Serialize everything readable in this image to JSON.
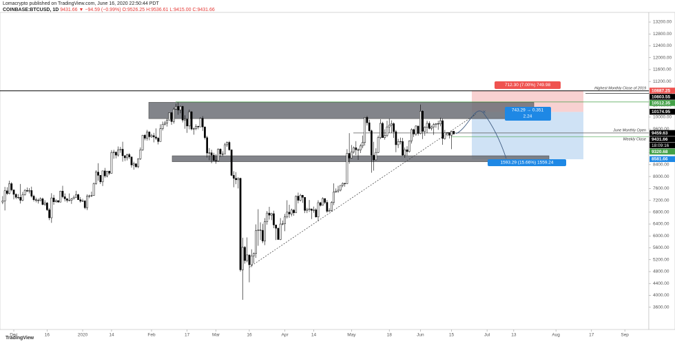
{
  "header": {
    "author": "Lomacrypto published on TradingView.com, June 16, 2020 22:50:44 PDT",
    "symbol": "COINBASE:BTCUSD, 1D",
    "quote": "9431.66 ▼ −94.59 (−0.99%)",
    "ohlc": "O:9526.25 H:9536.61 L:9415.00 C:9431.66"
  },
  "footer": {
    "brand": "TradingView"
  },
  "chart_data": {
    "type": "candlestick",
    "up_color": "#ffffff",
    "down_color": "#000000",
    "grid": false,
    "xlim": [
      -1.2,
      290.8
    ],
    "xticks": [
      {
        "value": 5,
        "label": "Dec"
      },
      {
        "value": 20,
        "label": "16"
      },
      {
        "value": 36,
        "label": "2020"
      },
      {
        "value": 49,
        "label": "14"
      },
      {
        "value": 67,
        "label": "Feb"
      },
      {
        "value": 83,
        "label": "17"
      },
      {
        "value": 96,
        "label": "Mar"
      },
      {
        "value": 111,
        "label": "16"
      },
      {
        "value": 127,
        "label": "Apr"
      },
      {
        "value": 140,
        "label": "14"
      },
      {
        "value": 157,
        "label": "May"
      },
      {
        "value": 174,
        "label": "18"
      },
      {
        "value": 188,
        "label": "Jun"
      },
      {
        "value": 202,
        "label": "15"
      },
      {
        "value": 218,
        "label": "Jul"
      },
      {
        "value": 230,
        "label": "13"
      },
      {
        "value": 249,
        "label": "Aug"
      },
      {
        "value": 265,
        "label": "17"
      },
      {
        "value": 280,
        "label": "Sep"
      }
    ],
    "ylim": [
      2850,
      13525
    ],
    "yticks": [
      {
        "value": 3600,
        "label": "3600.00"
      },
      {
        "value": 4000,
        "label": "4000.00"
      },
      {
        "value": 4400,
        "label": "4400.00"
      },
      {
        "value": 4800,
        "label": "4800.00"
      },
      {
        "value": 5200,
        "label": "5200.00"
      },
      {
        "value": 5600,
        "label": "5600.00"
      },
      {
        "value": 6000,
        "label": "6000.00"
      },
      {
        "value": 6400,
        "label": "6400.00"
      },
      {
        "value": 6800,
        "label": "6800.00"
      },
      {
        "value": 7200,
        "label": "7200.00"
      },
      {
        "value": 7600,
        "label": "7600.00"
      },
      {
        "value": 8000,
        "label": "8000.00"
      },
      {
        "value": 8400,
        "label": "8400.00"
      },
      {
        "value": 8800,
        "label": "8800.00"
      },
      {
        "value": 9200,
        "label": "9200.00"
      },
      {
        "value": 9600,
        "label": "9600.00"
      },
      {
        "value": 10000,
        "label": "10000.00"
      },
      {
        "value": 10400,
        "label": "10400.00"
      },
      {
        "value": 10800,
        "label": "10800.00"
      },
      {
        "value": 11200,
        "label": "11200.00"
      },
      {
        "value": 11600,
        "label": "11600.00"
      },
      {
        "value": 12000,
        "label": "12000.00"
      },
      {
        "value": 12400,
        "label": "12400.00"
      },
      {
        "value": 12800,
        "label": "12800.00"
      },
      {
        "value": 13200,
        "label": "13200.00"
      }
    ],
    "price_labels": [
      {
        "value": 10887.25,
        "color": "#ef5350"
      },
      {
        "value": 10803.55,
        "color": "#000000"
      },
      {
        "value": 10512.35,
        "color": "#43a047"
      },
      {
        "value": 10174.95,
        "color": "#000000"
      },
      {
        "value": 9459.63,
        "color": "#000000"
      },
      {
        "value": 9431.66,
        "color": "#000000",
        "countdown": "18:09:16"
      },
      {
        "value": 9320.68,
        "color": "#43a047"
      },
      {
        "value": 8581.66,
        "color": "#1e88e5"
      }
    ],
    "annotations": {
      "high_close": "Highest Monthly Close of 2019",
      "monthly_open": "June Monthly Open",
      "weekly_close": "Weekly Close",
      "target": "712.30 (7.00%) 749.98",
      "ratio_top": "743.29 → 0.351",
      "ratio_bottom": "2.24",
      "stop": "1593.29 (15.66%) 1559.24"
    },
    "candles": [
      [
        7140,
        7340,
        7070,
        7180
      ],
      [
        7180,
        7650,
        6860,
        7520
      ],
      [
        7520,
        7640,
        7380,
        7430
      ],
      [
        7430,
        7860,
        7400,
        7760
      ],
      [
        7760,
        7810,
        7500,
        7550
      ],
      [
        7550,
        7560,
        7230,
        7400
      ],
      [
        7400,
        7430,
        7240,
        7300
      ],
      [
        7300,
        7410,
        7240,
        7300
      ],
      [
        7300,
        7750,
        7090,
        7200
      ],
      [
        7200,
        7480,
        7170,
        7390
      ],
      [
        7390,
        7580,
        7360,
        7530
      ],
      [
        7530,
        7630,
        7480,
        7510
      ],
      [
        7510,
        7610,
        7430,
        7530
      ],
      [
        7530,
        7660,
        7290,
        7340
      ],
      [
        7340,
        7390,
        7160,
        7220
      ],
      [
        7220,
        7290,
        7130,
        7200
      ],
      [
        7200,
        7260,
        7090,
        7190
      ],
      [
        7190,
        7300,
        7170,
        7250
      ],
      [
        7250,
        7290,
        7030,
        7060
      ],
      [
        7060,
        7200,
        7010,
        7110
      ],
      [
        7110,
        7140,
        6840,
        6880
      ],
      [
        6880,
        6940,
        6530,
        6610
      ],
      [
        6610,
        7440,
        6440,
        7280
      ],
      [
        7280,
        7380,
        7050,
        7150
      ],
      [
        7150,
        7230,
        7120,
        7190
      ],
      [
        7190,
        7200,
        7120,
        7140
      ],
      [
        7140,
        7520,
        7130,
        7510
      ],
      [
        7510,
        7690,
        7270,
        7320
      ],
      [
        7320,
        7430,
        7160,
        7250
      ],
      [
        7250,
        7270,
        7130,
        7200
      ],
      [
        7200,
        7430,
        7170,
        7200
      ],
      [
        7200,
        7280,
        7080,
        7250
      ],
      [
        7250,
        7360,
        7240,
        7300
      ],
      [
        7300,
        7520,
        7290,
        7390
      ],
      [
        7390,
        7420,
        7210,
        7220
      ],
      [
        7220,
        7310,
        7120,
        7170
      ],
      [
        7170,
        7250,
        7150,
        7180
      ],
      [
        7180,
        7200,
        6900,
        6950
      ],
      [
        6950,
        7400,
        6870,
        7340
      ],
      [
        7340,
        7390,
        7270,
        7350
      ],
      [
        7350,
        7490,
        7310,
        7360
      ],
      [
        7360,
        7800,
        7350,
        7760
      ],
      [
        7760,
        8210,
        7730,
        8150
      ],
      [
        8150,
        8450,
        7860,
        8040
      ],
      [
        8040,
        8050,
        7750,
        7820
      ],
      [
        7820,
        8200,
        7680,
        8190
      ],
      [
        8190,
        8290,
        7960,
        8020
      ],
      [
        8020,
        8190,
        7970,
        8180
      ],
      [
        8180,
        8200,
        8050,
        8110
      ],
      [
        8110,
        8890,
        8100,
        8810
      ],
      [
        8810,
        8900,
        8600,
        8820
      ],
      [
        8820,
        8840,
        8610,
        8720
      ],
      [
        8720,
        9010,
        8670,
        8900
      ],
      [
        8900,
        9000,
        8800,
        8920
      ],
      [
        8920,
        9170,
        8500,
        8700
      ],
      [
        8700,
        8720,
        8520,
        8630
      ],
      [
        8630,
        8770,
        8540,
        8740
      ],
      [
        8740,
        8790,
        8590,
        8660
      ],
      [
        8660,
        8670,
        8300,
        8390
      ],
      [
        8390,
        8500,
        8230,
        8430
      ],
      [
        8430,
        8440,
        8290,
        8330
      ],
      [
        8330,
        8610,
        8280,
        8600
      ],
      [
        8600,
        8980,
        8560,
        8900
      ],
      [
        8900,
        9400,
        8870,
        9390
      ],
      [
        9390,
        9430,
        9220,
        9290
      ],
      [
        9290,
        9570,
        9210,
        9500
      ],
      [
        9500,
        9520,
        9220,
        9340
      ],
      [
        9340,
        9440,
        9300,
        9380
      ],
      [
        9380,
        9470,
        9150,
        9330
      ],
      [
        9330,
        9620,
        9230,
        9290
      ],
      [
        9290,
        9330,
        9080,
        9180
      ],
      [
        9180,
        9760,
        9170,
        9610
      ],
      [
        9610,
        9850,
        9550,
        9760
      ],
      [
        9760,
        9870,
        9720,
        9800
      ],
      [
        9800,
        9950,
        9680,
        9900
      ],
      [
        9900,
        10160,
        9890,
        10150
      ],
      [
        10150,
        10170,
        9740,
        9850
      ],
      [
        9850,
        10320,
        9780,
        10270
      ],
      [
        10270,
        10450,
        10250,
        10360
      ],
      [
        10360,
        10500,
        10080,
        10240
      ],
      [
        10240,
        10390,
        10130,
        10360
      ],
      [
        10360,
        10380,
        9820,
        9900
      ],
      [
        9900,
        10060,
        9610,
        9930
      ],
      [
        9930,
        9960,
        9470,
        9700
      ],
      [
        9700,
        10250,
        9590,
        10180
      ],
      [
        10180,
        10200,
        9550,
        9600
      ],
      [
        9600,
        9650,
        9410,
        9610
      ],
      [
        9610,
        9760,
        9560,
        9690
      ],
      [
        9690,
        9710,
        9590,
        9670
      ],
      [
        9670,
        9990,
        9660,
        9960
      ],
      [
        9960,
        10030,
        9530,
        9670
      ],
      [
        9670,
        9680,
        9250,
        9310
      ],
      [
        9310,
        9370,
        8640,
        8790
      ],
      [
        8790,
        8960,
        8550,
        8800
      ],
      [
        8800,
        8900,
        8450,
        8720
      ],
      [
        8720,
        8800,
        8530,
        8540
      ],
      [
        8540,
        8750,
        8430,
        8530
      ],
      [
        8530,
        8950,
        8520,
        8920
      ],
      [
        8920,
        8950,
        8660,
        8760
      ],
      [
        8760,
        8850,
        8680,
        8760
      ],
      [
        8760,
        9130,
        8760,
        9070
      ],
      [
        9070,
        9180,
        9000,
        9150
      ],
      [
        9150,
        9200,
        8870,
        8900
      ],
      [
        8900,
        8900,
        8010,
        8040
      ],
      [
        8040,
        8180,
        7640,
        7940
      ],
      [
        7940,
        8150,
        7740,
        7890
      ],
      [
        7890,
        7970,
        7600,
        7940
      ],
      [
        7940,
        7960,
        4800,
        4860
      ],
      [
        4860,
        5940,
        3850,
        5620
      ],
      [
        5620,
        5660,
        5070,
        5170
      ],
      [
        5170,
        5950,
        5110,
        5360
      ],
      [
        5360,
        5370,
        4440,
        5030
      ],
      [
        5030,
        5550,
        4950,
        5330
      ],
      [
        5330,
        5440,
        5080,
        5410
      ],
      [
        5410,
        6390,
        5260,
        6180
      ],
      [
        6180,
        6900,
        5670,
        6200
      ],
      [
        6200,
        6460,
        5860,
        6190
      ],
      [
        6190,
        6410,
        5760,
        5830
      ],
      [
        5830,
        6600,
        5690,
        6480
      ],
      [
        6480,
        6840,
        6380,
        6770
      ],
      [
        6770,
        6980,
        6550,
        6700
      ],
      [
        6700,
        6780,
        6530,
        6750
      ],
      [
        6750,
        6850,
        6260,
        6370
      ],
      [
        6370,
        6380,
        5860,
        6260
      ],
      [
        6260,
        6280,
        5870,
        5880
      ],
      [
        5880,
        6600,
        5860,
        6400
      ],
      [
        6400,
        6520,
        6360,
        6410
      ],
      [
        6410,
        6740,
        6160,
        6640
      ],
      [
        6640,
        7200,
        6590,
        6800
      ],
      [
        6800,
        7050,
        6610,
        6740
      ],
      [
        6740,
        6920,
        6660,
        6870
      ],
      [
        6870,
        6900,
        6680,
        6780
      ],
      [
        6780,
        7360,
        6770,
        7340
      ],
      [
        7340,
        7460,
        7100,
        7200
      ],
      [
        7200,
        7420,
        7160,
        7370
      ],
      [
        7370,
        7380,
        7110,
        7300
      ],
      [
        7300,
        7310,
        6770,
        6860
      ],
      [
        6860,
        6950,
        6770,
        6890
      ],
      [
        6890,
        7210,
        6810,
        6910
      ],
      [
        6910,
        6920,
        6570,
        6860
      ],
      [
        6860,
        6990,
        6780,
        6880
      ],
      [
        6880,
        6930,
        6620,
        6640
      ],
      [
        6640,
        7200,
        6490,
        7120
      ],
      [
        7120,
        7150,
        6990,
        7030
      ],
      [
        7030,
        7300,
        7030,
        7260
      ],
      [
        7260,
        7260,
        7070,
        7130
      ],
      [
        7130,
        7210,
        6780,
        6830
      ],
      [
        6830,
        6930,
        6820,
        6850
      ],
      [
        6850,
        7170,
        6830,
        7130
      ],
      [
        7130,
        7770,
        7040,
        7480
      ],
      [
        7480,
        7600,
        7450,
        7510
      ],
      [
        7510,
        7690,
        7450,
        7540
      ],
      [
        7540,
        7710,
        7500,
        7700
      ],
      [
        7700,
        7800,
        7640,
        7770
      ],
      [
        7770,
        7790,
        7660,
        7760
      ],
      [
        7760,
        8920,
        7750,
        8780
      ],
      [
        8780,
        9460,
        8430,
        8620
      ],
      [
        8620,
        9060,
        8620,
        8830
      ],
      [
        8830,
        9010,
        8770,
        8970
      ],
      [
        8970,
        9190,
        8720,
        8900
      ],
      [
        8900,
        8950,
        8560,
        8890
      ],
      [
        8890,
        9100,
        8790,
        9030
      ],
      [
        9030,
        9380,
        8950,
        9150
      ],
      [
        9150,
        10000,
        9040,
        9990
      ],
      [
        9990,
        10040,
        9720,
        9810
      ],
      [
        9810,
        9910,
        9500,
        9540
      ],
      [
        9540,
        9580,
        8130,
        8720
      ],
      [
        8720,
        9170,
        8200,
        8560
      ],
      [
        8560,
        8950,
        8540,
        8810
      ],
      [
        8810,
        9380,
        8790,
        9310
      ],
      [
        9310,
        9930,
        9260,
        9790
      ],
      [
        9790,
        9840,
        9310,
        9310
      ],
      [
        9310,
        9590,
        9240,
        9380
      ],
      [
        9380,
        9880,
        9330,
        9670
      ],
      [
        9670,
        9950,
        9470,
        9730
      ],
      [
        9730,
        9890,
        9470,
        9780
      ],
      [
        9780,
        9820,
        9300,
        9510
      ],
      [
        9510,
        9570,
        8820,
        9070
      ],
      [
        9070,
        9270,
        8960,
        9170
      ],
      [
        9170,
        9310,
        9080,
        9180
      ],
      [
        9180,
        9300,
        8700,
        8720
      ],
      [
        8720,
        8980,
        8630,
        8900
      ],
      [
        8900,
        9020,
        8700,
        8840
      ],
      [
        8840,
        9220,
        8810,
        9200
      ],
      [
        9200,
        9620,
        9110,
        9580
      ],
      [
        9580,
        9610,
        9330,
        9430
      ],
      [
        9430,
        9720,
        9370,
        9700
      ],
      [
        9700,
        9700,
        9380,
        9450
      ],
      [
        9450,
        10420,
        9420,
        10200
      ],
      [
        10200,
        10230,
        9260,
        9520
      ],
      [
        9520,
        9690,
        9370,
        9660
      ],
      [
        9660,
        9880,
        9460,
        9790
      ],
      [
        9790,
        9860,
        9590,
        9620
      ],
      [
        9620,
        9720,
        9550,
        9670
      ],
      [
        9670,
        9800,
        9400,
        9750
      ],
      [
        9750,
        9800,
        9640,
        9780
      ],
      [
        9780,
        9880,
        9570,
        9770
      ],
      [
        9770,
        9980,
        9690,
        9880
      ],
      [
        9880,
        9950,
        9070,
        9280
      ],
      [
        9280,
        9570,
        9240,
        9470
      ],
      [
        9470,
        9500,
        9360,
        9480
      ],
      [
        9480,
        9490,
        9280,
        9390
      ],
      [
        9390,
        9540,
        8920,
        9526.25
      ],
      [
        9526.25,
        9536.61,
        9415,
        9431.66
      ]
    ]
  }
}
